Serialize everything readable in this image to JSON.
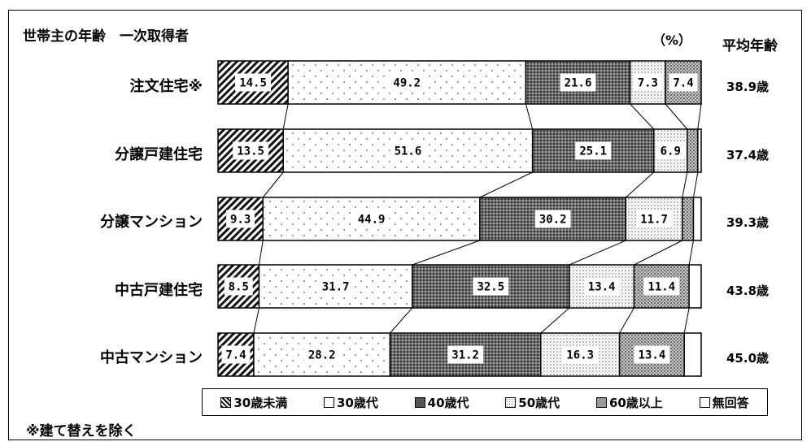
{
  "title": "世帯主の年齢　一次取得者",
  "unit": "（%）",
  "avg_header": "平均年齢",
  "note": "※建て替えを除く",
  "colors": {
    "lt30": "#222222",
    "s30": "#8a8a8a",
    "s40": "#5a5a5a",
    "s50": "#a8a8a8",
    "s60": "#7a7a7a",
    "na": "#ffffff"
  },
  "chart_data": {
    "type": "bar",
    "orientation": "horizontal",
    "stacked": true,
    "xlim": [
      0,
      100
    ],
    "categories": [
      "注文住宅※",
      "分譲戸建住宅",
      "分譲マンション",
      "中古戸建住宅",
      "中古マンション"
    ],
    "series": [
      {
        "key": "lt30",
        "name": "30歳未満",
        "values": [
          14.5,
          13.5,
          9.3,
          8.5,
          7.4
        ],
        "labels": [
          "14.5",
          "13.5",
          "9.3",
          "8.5",
          "7.4"
        ]
      },
      {
        "key": "s30",
        "name": "30歳代",
        "values": [
          49.2,
          51.6,
          44.9,
          31.7,
          28.2
        ],
        "labels": [
          "49.2",
          "51.6",
          "44.9",
          "31.7",
          "28.2"
        ]
      },
      {
        "key": "s40",
        "name": "40歳代",
        "values": [
          21.6,
          25.1,
          30.2,
          32.5,
          31.2
        ],
        "labels": [
          "21.6",
          "25.1",
          "30.2",
          "32.5",
          "31.2"
        ]
      },
      {
        "key": "s50",
        "name": "50歳代",
        "values": [
          7.3,
          6.9,
          11.7,
          13.4,
          16.3
        ],
        "labels": [
          "7.3",
          "6.9",
          "11.7",
          "13.4",
          "16.3"
        ]
      },
      {
        "key": "s60",
        "name": "60歳以上",
        "values": [
          7.4,
          2.2,
          2.3,
          11.4,
          13.4
        ],
        "labels": [
          "7.4",
          "",
          "",
          "11.4",
          "13.4"
        ]
      },
      {
        "key": "na",
        "name": "無回答",
        "values": [
          0,
          0.7,
          1.6,
          2.5,
          3.5
        ],
        "labels": [
          "",
          "",
          "",
          "",
          ""
        ]
      }
    ],
    "averages": [
      "38.9歳",
      "37.4歳",
      "39.3歳",
      "43.8歳",
      "45.0歳"
    ],
    "legend_position": "bottom",
    "grid": false
  }
}
